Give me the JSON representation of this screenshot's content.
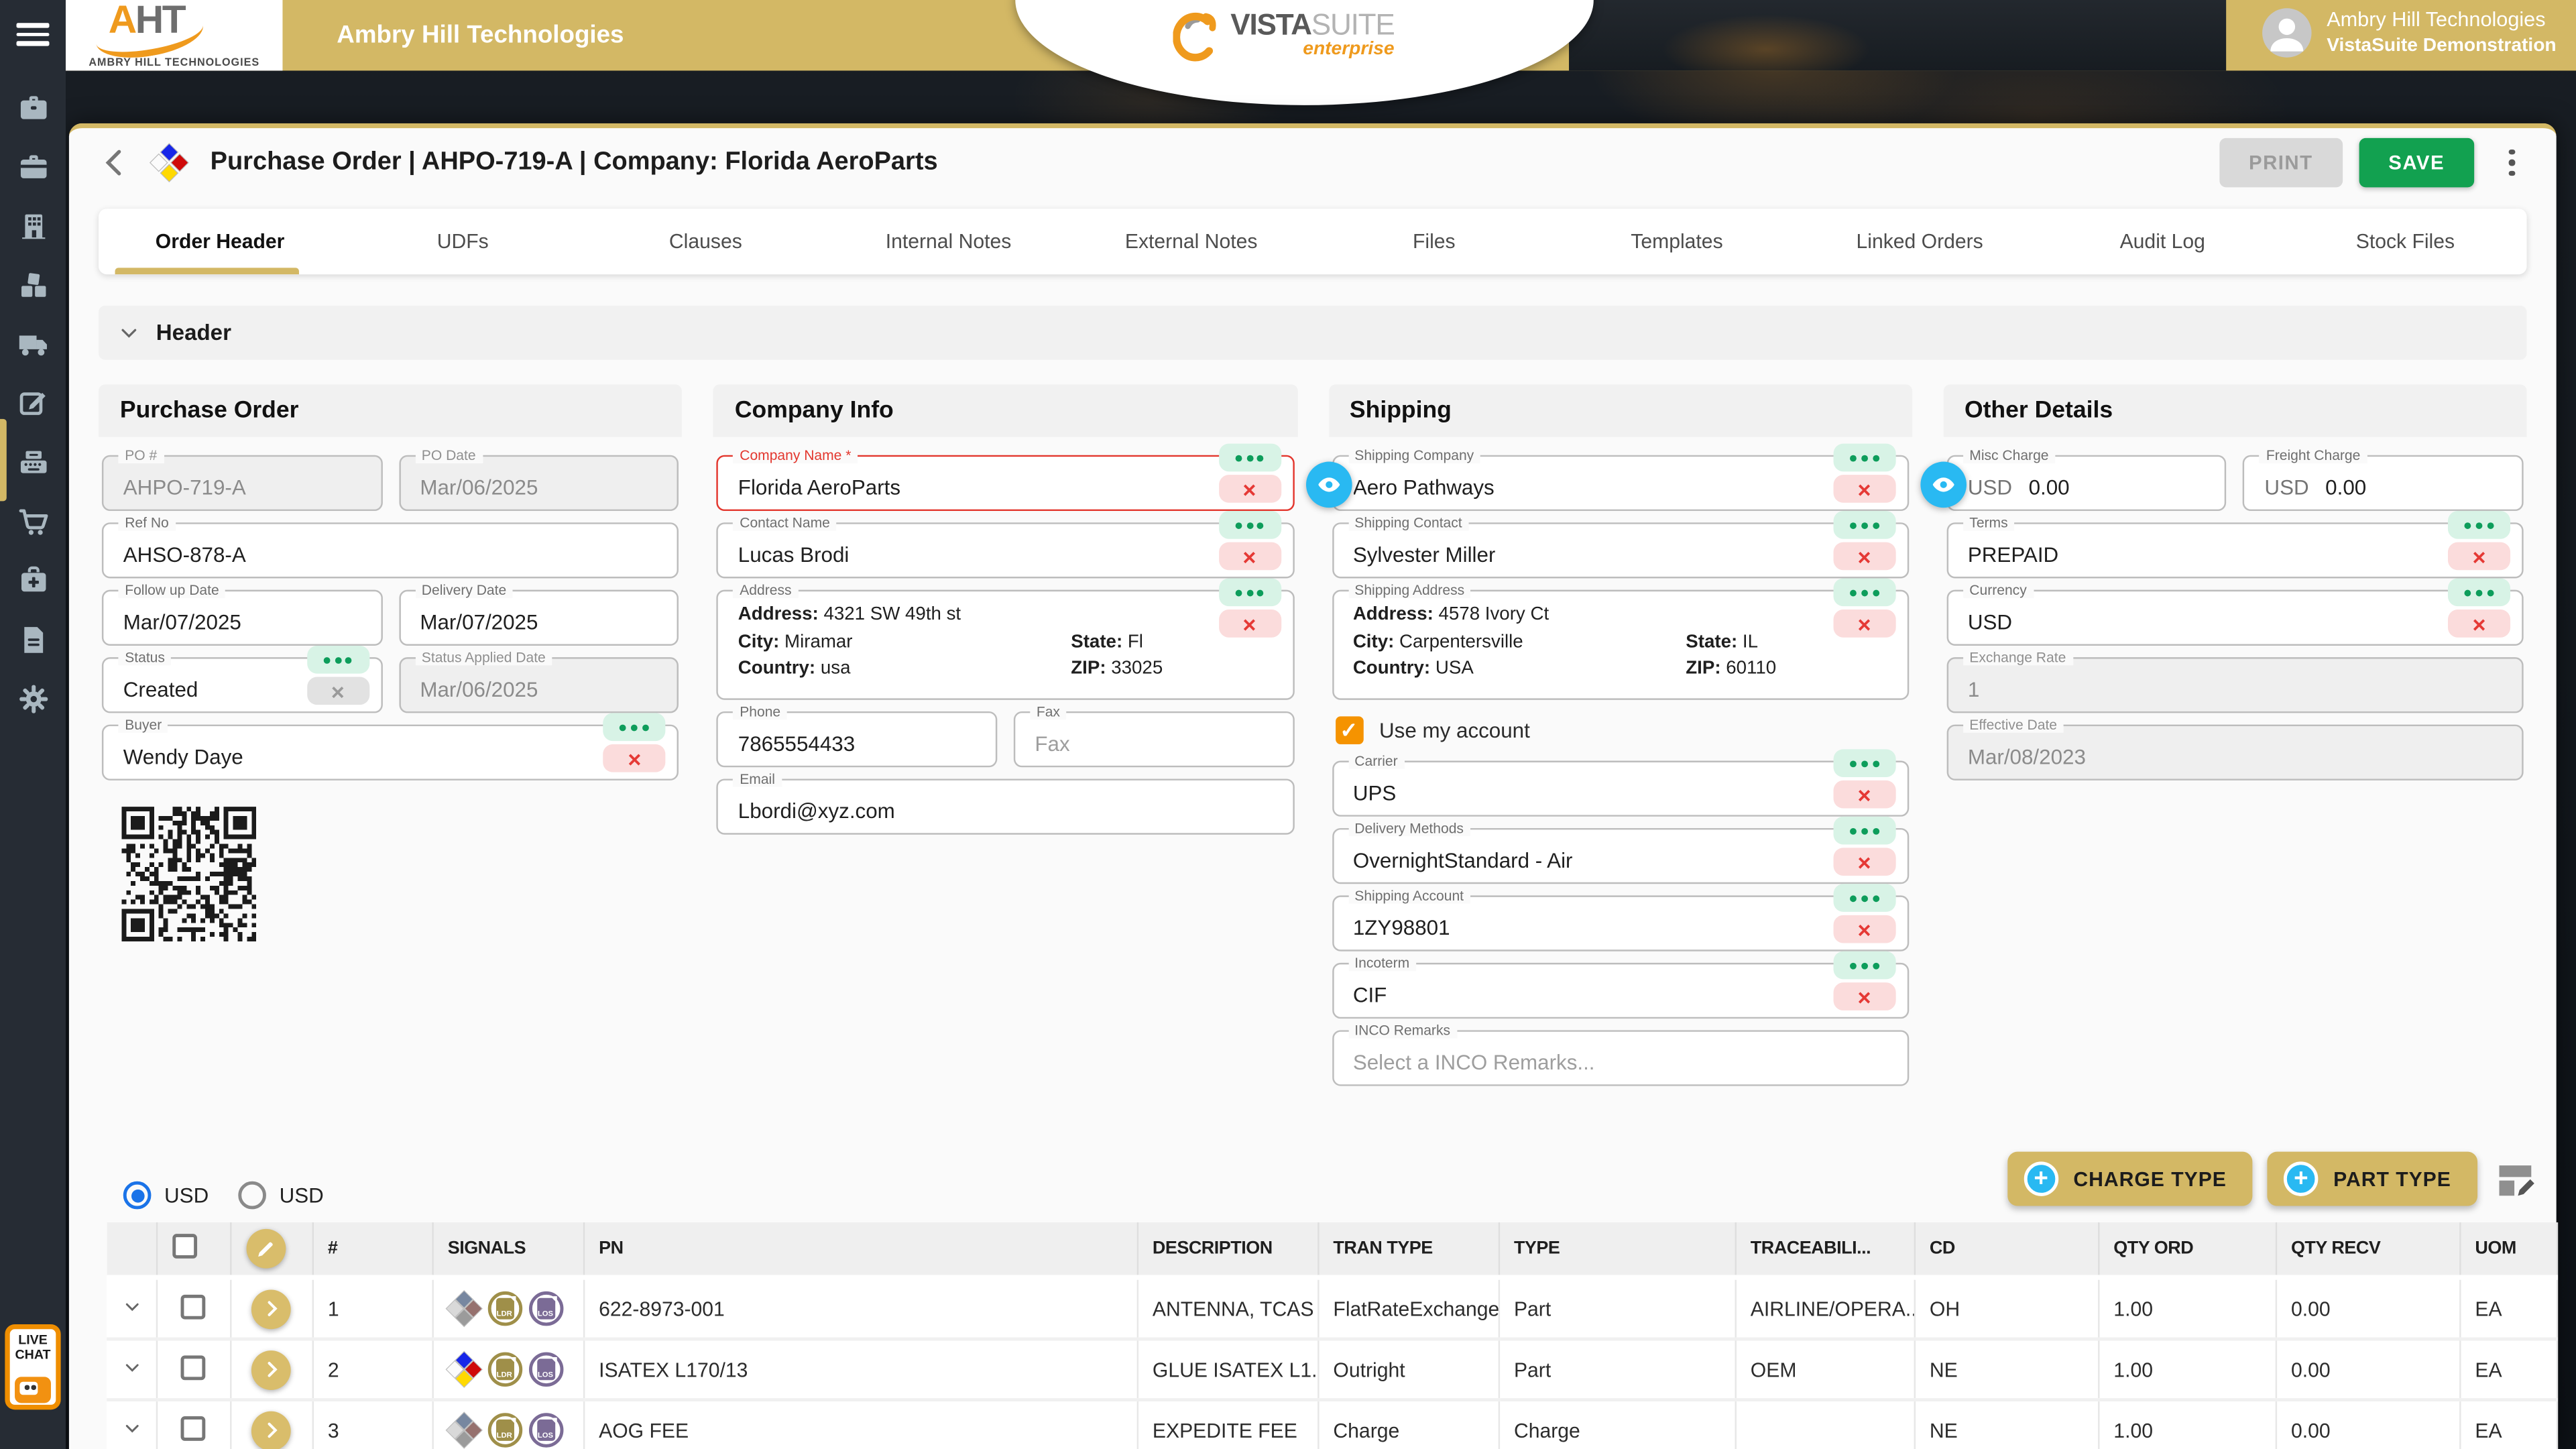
{
  "colors": {
    "gold_accent": "#d3b865",
    "save_green": "#12a150",
    "danger_red": "#e53935",
    "menu_chip_green": "#0d9d5b",
    "eye_blue": "#29b9f2",
    "checkbox_orange": "#f59300",
    "radio_blue": "#1a73e8",
    "sidebar_dark": "#262c34"
  },
  "icons": {
    "close": "×",
    "check": "✓",
    "plus": "+",
    "sidebar_order": [
      "briefcase",
      "briefcase-alt",
      "building",
      "inventory-boxes",
      "truck",
      "edit-note",
      "typewriter",
      "shopping-cart",
      "first-aid",
      "invoice",
      "gear"
    ]
  },
  "topbar": {
    "logo_acronym_a": "A",
    "logo_acronym_rest": "HT",
    "logo_caption": "AMBRY HILL TECHNOLOGIES",
    "app_title": "Ambry Hill Technologies",
    "brand": {
      "vista": "VISTA",
      "suite": "SUITE",
      "tier": "enterprise"
    },
    "user": {
      "org": "Ambry Hill Technologies",
      "env": "VistaSuite Demonstration"
    }
  },
  "toolbar": {
    "title": "Purchase Order | AHPO-719-A | Company: Florida AeroParts",
    "print_label": "PRINT",
    "save_label": "SAVE"
  },
  "tabs": [
    "Order Header",
    "UDFs",
    "Clauses",
    "Internal Notes",
    "External Notes",
    "Files",
    "Templates",
    "Linked Orders",
    "Audit Log",
    "Stock Files"
  ],
  "section_header": "Header",
  "purchase_order": {
    "title": "Purchase Order",
    "po_no": {
      "label": "PO #",
      "value": "AHPO-719-A"
    },
    "po_date": {
      "label": "PO Date",
      "value": "Mar/06/2025"
    },
    "ref_no": {
      "label": "Ref No",
      "value": "AHSO-878-A"
    },
    "follow_up_date": {
      "label": "Follow up Date",
      "value": "Mar/07/2025"
    },
    "delivery_date": {
      "label": "Delivery Date",
      "value": "Mar/07/2025"
    },
    "status": {
      "label": "Status",
      "value": "Created"
    },
    "status_applied_date": {
      "label": "Status Applied Date",
      "value": "Mar/06/2025"
    },
    "buyer": {
      "label": "Buyer",
      "value": "Wendy Daye"
    }
  },
  "company_info": {
    "title": "Company Info",
    "company_name": {
      "label": "Company Name *",
      "value": "Florida AeroParts"
    },
    "contact_name": {
      "label": "Contact Name",
      "value": "Lucas Brodi"
    },
    "address": {
      "label": "Address",
      "street_label": "Address:",
      "street": "4321 SW 49th st",
      "city_label": "City:",
      "city": "Miramar",
      "state_label": "State:",
      "state": "Fl",
      "country_label": "Country:",
      "country": "usa",
      "zip_label": "ZIP:",
      "zip": "33025"
    },
    "phone": {
      "label": "Phone",
      "value": "7865554433"
    },
    "fax": {
      "label": "Fax",
      "placeholder": "Fax"
    },
    "email": {
      "label": "Email",
      "value": "Lbordi@xyz.com"
    }
  },
  "shipping": {
    "title": "Shipping",
    "shipping_company": {
      "label": "Shipping Company",
      "value": "Aero Pathways"
    },
    "shipping_contact": {
      "label": "Shipping Contact",
      "value": "Sylvester Miller"
    },
    "shipping_address": {
      "label": "Shipping Address",
      "street_label": "Address:",
      "street": "4578 Ivory Ct",
      "city_label": "City:",
      "city": "Carpentersville",
      "state_label": "State:",
      "state": "IL",
      "country_label": "Country:",
      "country": "USA",
      "zip_label": "ZIP:",
      "zip": "60110"
    },
    "use_account_label": "Use my account",
    "carrier": {
      "label": "Carrier",
      "value": "UPS"
    },
    "delivery_methods": {
      "label": "Delivery Methods",
      "value": "OvernightStandard - Air"
    },
    "shipping_account": {
      "label": "Shipping Account",
      "value": "1ZY98801"
    },
    "incoterm": {
      "label": "Incoterm",
      "value": "CIF"
    },
    "inco_remarks": {
      "label": "INCO Remarks",
      "placeholder": "Select a INCO Remarks..."
    }
  },
  "other_details": {
    "title": "Other Details",
    "misc_charge": {
      "label": "Misc Charge",
      "currency": "USD",
      "value": "0.00"
    },
    "freight_charge": {
      "label": "Freight Charge",
      "currency": "USD",
      "value": "0.00"
    },
    "terms": {
      "label": "Terms",
      "value": "PREPAID"
    },
    "currency": {
      "label": "Currency",
      "value": "USD"
    },
    "exchange_rate": {
      "label": "Exchange Rate",
      "value": "1"
    },
    "effective_date": {
      "label": "Effective Date",
      "value": "Mar/08/2023"
    }
  },
  "list_toolbar": {
    "currency_option_1": "USD",
    "currency_option_2": "USD",
    "charge_type_label": "CHARGE TYPE",
    "part_type_label": "PART TYPE"
  },
  "table": {
    "columns": {
      "num": "#",
      "signals": "SIGNALS",
      "pn": "PN",
      "description": "DESCRIPTION",
      "tran_type": "TRAN TYPE",
      "type": "TYPE",
      "traceability": "TRACEABILI...",
      "cd": "CD",
      "qty_ord": "QTY ORD",
      "qty_recv": "QTY RECV",
      "uom": "UOM"
    },
    "signal_badges": {
      "ldr": "LDR",
      "los": "LOS"
    },
    "rows": [
      {
        "num": "1",
        "pn": "622-8973-001",
        "description": "ANTENNA, TCAS",
        "tran_type": "FlatRateExchange",
        "type": "Part",
        "traceability": "AIRLINE/OPERA...",
        "cd": "OH",
        "qty_ord": "1.00",
        "qty_recv": "0.00",
        "uom": "EA"
      },
      {
        "num": "2",
        "pn": "ISATEX L170/13",
        "description": "GLUE ISATEX L1...",
        "tran_type": "Outright",
        "type": "Part",
        "traceability": "OEM",
        "cd": "NE",
        "qty_ord": "1.00",
        "qty_recv": "0.00",
        "uom": "EA"
      },
      {
        "num": "3",
        "pn": "AOG FEE",
        "description": "EXPEDITE FEE",
        "tran_type": "Charge",
        "type": "Charge",
        "traceability": "",
        "cd": "NE",
        "qty_ord": "1.00",
        "qty_recv": "0.00",
        "uom": "EA"
      }
    ]
  },
  "live_chat": {
    "line1": "LIVE",
    "line2": "CHAT"
  }
}
